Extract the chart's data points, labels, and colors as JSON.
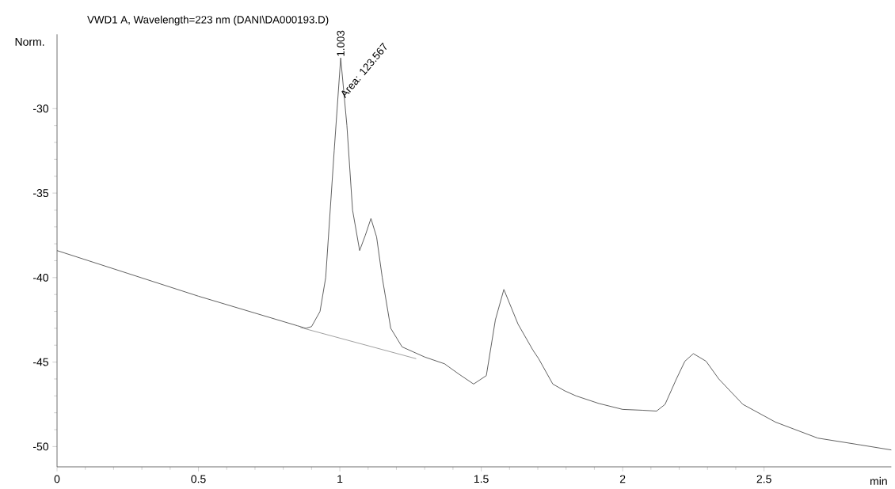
{
  "chart_data": {
    "type": "line",
    "title": "VWD1 A, Wavelength=223 nm (DANI\\DA000193.D)",
    "xlabel": "min",
    "ylabel": "Norm.",
    "xlim": [
      0,
      2.95
    ],
    "ylim": [
      -51.2,
      -25.6
    ],
    "xticks": [
      0,
      0.5,
      1,
      1.5,
      2,
      2.5
    ],
    "yticks": [
      -50,
      -45,
      -40,
      -35,
      -30
    ],
    "series": [
      {
        "color": "#555555",
        "x": [
          0,
          0.25,
          0.5,
          0.7,
          0.85,
          0.88,
          0.9,
          0.93,
          0.95,
          0.98,
          1.003,
          1.025,
          1.045,
          1.07,
          1.09,
          1.11,
          1.13,
          1.15,
          1.18,
          1.22,
          1.3,
          1.37,
          1.42,
          1.473,
          1.518,
          1.55,
          1.58,
          1.63,
          1.683,
          1.703,
          1.753,
          1.795,
          1.835,
          1.916,
          2.0,
          2.07,
          2.12,
          2.15,
          2.19,
          2.22,
          2.25,
          2.295,
          2.34,
          2.425,
          2.54,
          2.69,
          2.84,
          2.95
        ],
        "values": [
          -38.4,
          -39.75,
          -41.1,
          -42.1,
          -42.85,
          -43.0,
          -42.9,
          -42.0,
          -40.0,
          -32.5,
          -27.0,
          -31.0,
          -36.0,
          -38.4,
          -37.5,
          -36.5,
          -37.6,
          -40.0,
          -43.0,
          -44.1,
          -44.7,
          -45.1,
          -45.7,
          -46.3,
          -45.8,
          -42.5,
          -40.7,
          -42.75,
          -44.3,
          -44.8,
          -46.3,
          -46.7,
          -47.0,
          -47.45,
          -47.8,
          -47.85,
          -47.9,
          -47.5,
          -46.0,
          -44.95,
          -44.5,
          -44.95,
          -46.0,
          -47.5,
          -48.55,
          -49.5,
          -49.9,
          -50.2
        ]
      },
      {
        "type": "line",
        "color": "#999999",
        "x": [
          0.86,
          1.27
        ],
        "values": [
          -42.95,
          -44.8
        ]
      }
    ],
    "annotations": [
      {
        "text": "1.003",
        "x": 1.003,
        "y": -27.0
      },
      {
        "text": "Area: 123.567",
        "x": 1.02,
        "y": -29.5
      }
    ]
  }
}
